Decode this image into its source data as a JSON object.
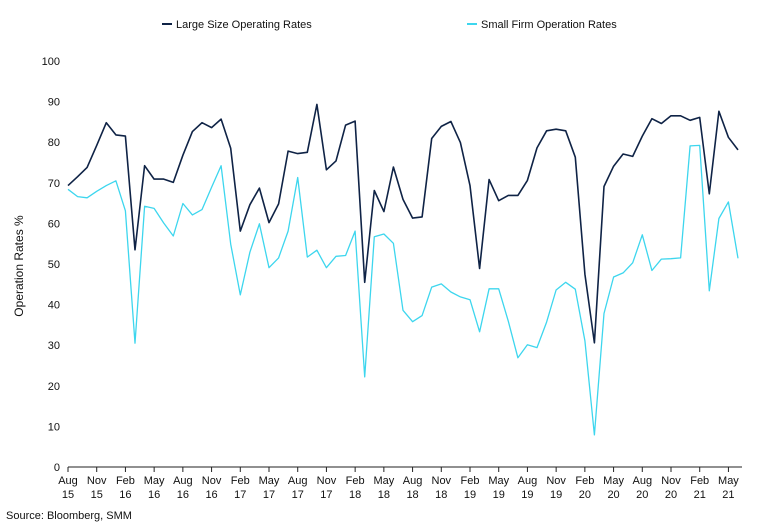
{
  "chart_data": {
    "type": "line",
    "ylabel": "Operation Rates %",
    "ylim": [
      0,
      100
    ],
    "yticks": [
      0,
      10,
      20,
      30,
      40,
      50,
      60,
      70,
      80,
      90,
      100
    ],
    "grid": false,
    "legend": "top",
    "x_tick_labels": [
      [
        "Aug",
        "15"
      ],
      [
        "Nov",
        "15"
      ],
      [
        "Feb",
        "16"
      ],
      [
        "May",
        "16"
      ],
      [
        "Aug",
        "16"
      ],
      [
        "Nov",
        "16"
      ],
      [
        "Feb",
        "17"
      ],
      [
        "May",
        "17"
      ],
      [
        "Aug",
        "17"
      ],
      [
        "Nov",
        "17"
      ],
      [
        "Feb",
        "18"
      ],
      [
        "May",
        "18"
      ],
      [
        "Aug",
        "18"
      ],
      [
        "Nov",
        "18"
      ],
      [
        "Feb",
        "19"
      ],
      [
        "May",
        "19"
      ],
      [
        "Aug",
        "19"
      ],
      [
        "Nov",
        "19"
      ],
      [
        "Feb",
        "20"
      ],
      [
        "May",
        "20"
      ],
      [
        "Aug",
        "20"
      ],
      [
        "Nov",
        "20"
      ],
      [
        "Feb",
        "21"
      ],
      [
        "May",
        "21"
      ]
    ],
    "series": [
      {
        "name": "Large Size Operating Rates",
        "color": "#0f2346",
        "values": [
          69.3,
          71.5,
          73.8,
          79.2,
          84.8,
          81.8,
          81.5,
          53.5,
          74.2,
          70.9,
          70.9,
          70.1,
          76.8,
          82.6,
          84.8,
          83.6,
          85.7,
          78.5,
          58.1,
          64.6,
          68.7,
          60.2,
          64.8,
          77.8,
          77.2,
          77.5,
          89.3,
          73.2,
          75.4,
          84.2,
          85.2,
          45.5,
          68.1,
          62.9,
          73.9,
          65.9,
          61.3,
          61.6,
          80.9,
          83.9,
          85.1,
          79.9,
          69.3,
          48.9,
          70.8,
          65.6,
          66.9,
          66.9,
          70.6,
          78.6,
          82.8,
          83.2,
          82.8,
          76.3,
          47.5,
          30.6,
          69.1,
          74.1,
          77.1,
          76.5,
          81.5,
          85.8,
          84.6,
          86.5,
          86.5,
          85.4,
          86.1,
          67.3,
          87.6,
          81.2,
          78.1
        ]
      },
      {
        "name": "Small Firm Operation Rates",
        "color": "#3dd6ee",
        "values": [
          68.4,
          66.6,
          66.3,
          67.9,
          69.3,
          70.5,
          63.1,
          30.5,
          64.2,
          63.7,
          60.1,
          56.9,
          64.9,
          62.1,
          63.4,
          68.9,
          74.2,
          54.9,
          42.4,
          52.9,
          59.9,
          49.1,
          51.5,
          58.1,
          71.3,
          51.7,
          53.4,
          49.1,
          51.9,
          52.1,
          58.1,
          22.2,
          56.7,
          57.4,
          55.1,
          38.6,
          35.8,
          37.3,
          44.3,
          45.1,
          43.1,
          41.9,
          41.2,
          33.3,
          43.9,
          43.9,
          35.9,
          26.9,
          30.1,
          29.4,
          35.7,
          43.6,
          45.5,
          43.8,
          31.1,
          7.9,
          37.8,
          46.8,
          47.8,
          50.3,
          57.2,
          48.4,
          51.2,
          51.3,
          51.5,
          79.1,
          79.2,
          43.4,
          61.2,
          65.3,
          51.4
        ]
      }
    ]
  },
  "source_note": "Source: Bloomberg, SMM"
}
